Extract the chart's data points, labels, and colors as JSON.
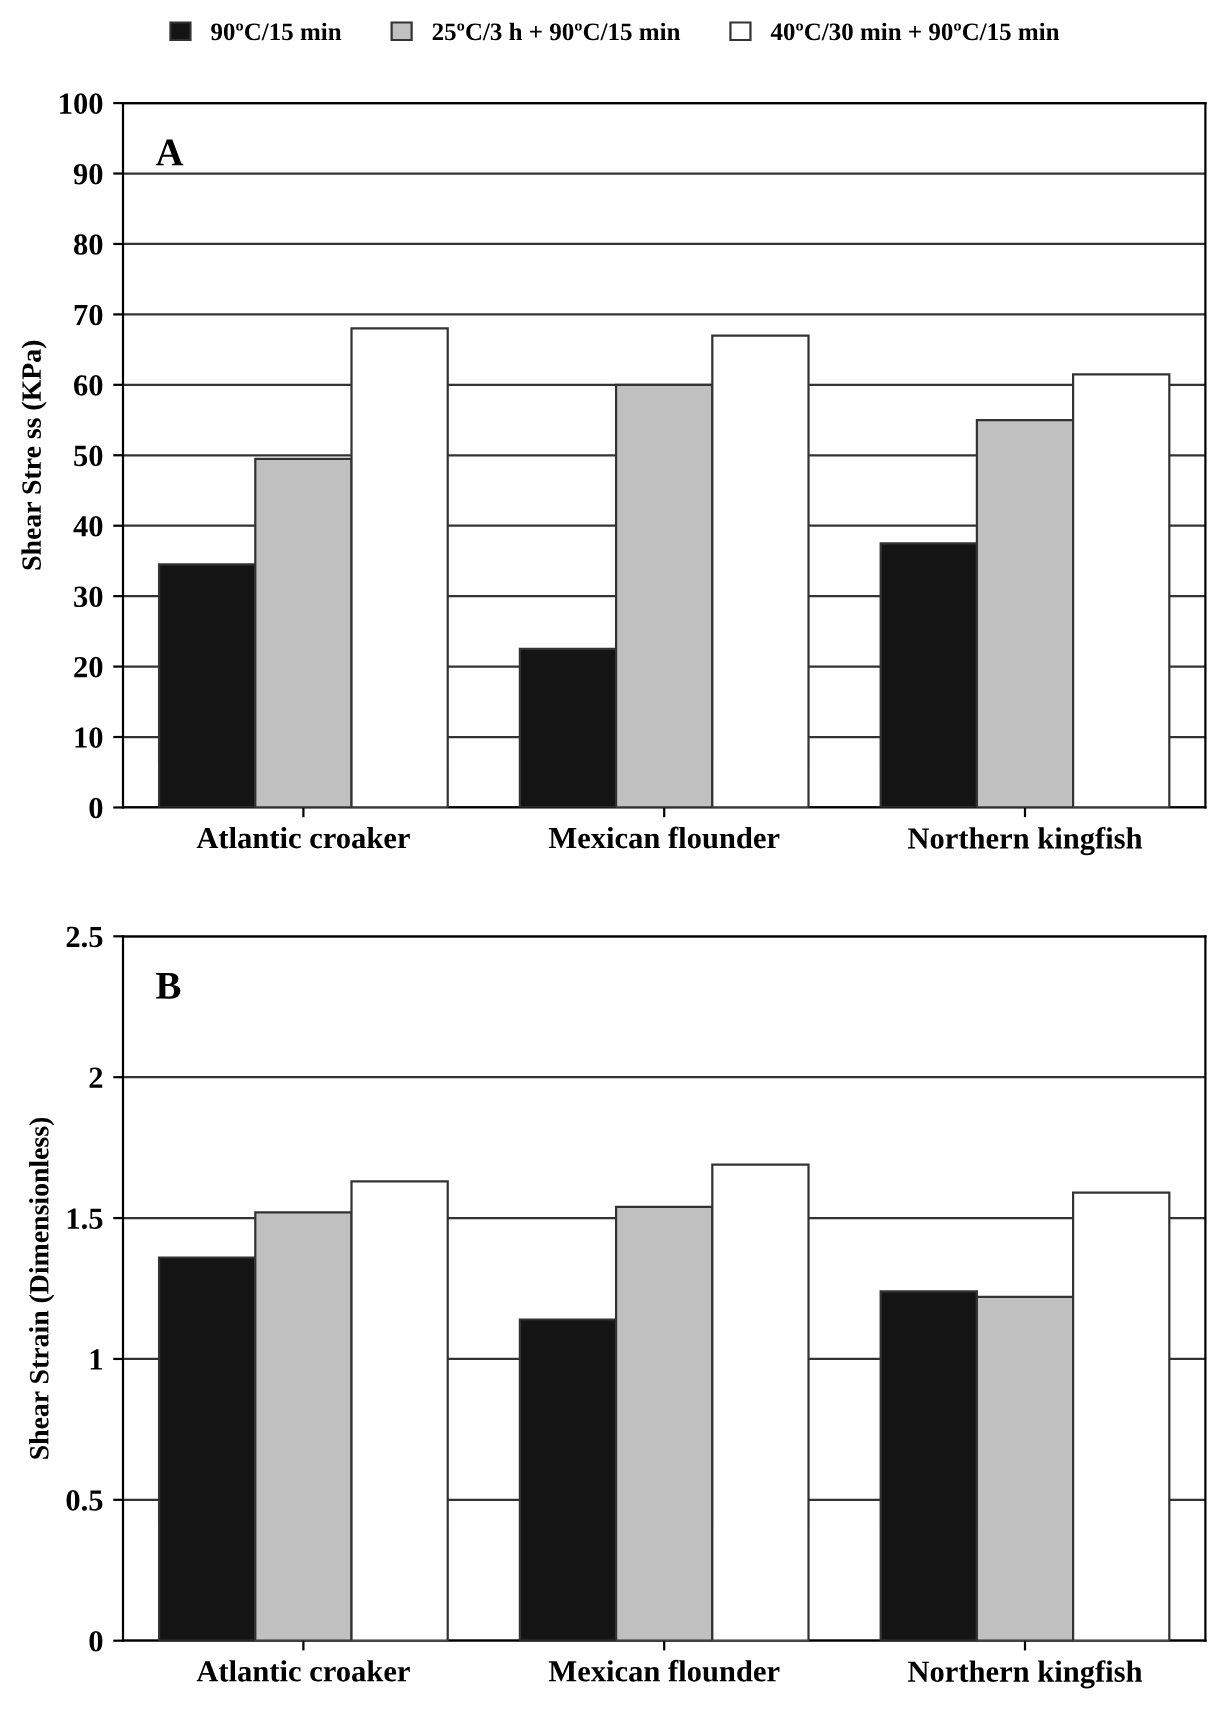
{
  "chart_data": [
    {
      "type": "bar",
      "ylabel": "Shear Stre ss (KPa)",
      "annotations": [
        "A"
      ],
      "categories": [
        "Atlantic croaker",
        "Mexican flounder",
        "Northern kingfish"
      ],
      "series": [
        {
          "name": "90ºC/15 min",
          "color": "#141414",
          "values": [
            34.5,
            22.5,
            37.5
          ]
        },
        {
          "name": "25ºC/3 h + 90ºC/15 min",
          "color": "#c0c0c0",
          "values": [
            49.5,
            60,
            55
          ]
        },
        {
          "name": "40ºC/30 min + 90ºC/15 min",
          "color": "#ffffff",
          "values": [
            68,
            67,
            61.5
          ]
        }
      ],
      "ylim": [
        0,
        100
      ],
      "yticks": [
        0,
        10,
        20,
        30,
        40,
        50,
        60,
        70,
        80,
        90,
        100
      ],
      "grid": "y",
      "legend": "top"
    },
    {
      "type": "bar",
      "ylabel": "Shear Strain (Dimensionless)",
      "annotations": [
        "B"
      ],
      "categories": [
        "Atlantic croaker",
        "Mexican flounder",
        "Northern kingfish"
      ],
      "series": [
        {
          "color": "#141414",
          "values": [
            1.36,
            1.14,
            1.24
          ]
        },
        {
          "color": "#c0c0c0",
          "values": [
            1.52,
            1.54,
            1.22
          ]
        },
        {
          "color": "#ffffff",
          "values": [
            1.63,
            1.69,
            1.59
          ]
        }
      ],
      "ylim": [
        0,
        2.5
      ],
      "yticks": [
        0,
        0.5,
        1,
        1.5,
        2,
        2.5
      ],
      "grid": "y"
    }
  ]
}
